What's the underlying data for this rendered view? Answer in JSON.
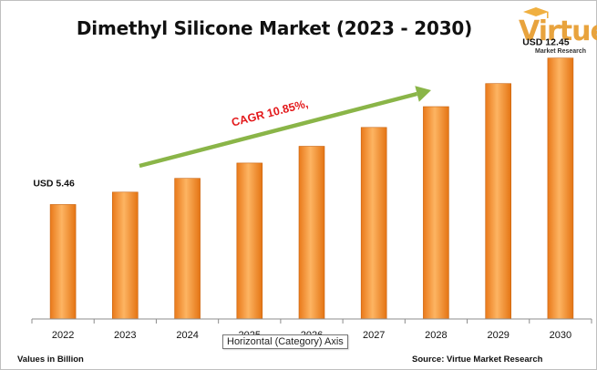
{
  "chart_data": {
    "type": "bar",
    "title": "Dimethyl Silicone Market (2023 - 2030)",
    "categories": [
      "2022",
      "2023",
      "2024",
      "2025",
      "2026",
      "2027",
      "2028",
      "2029",
      "2030"
    ],
    "values": [
      5.46,
      6.05,
      6.71,
      7.44,
      8.24,
      9.14,
      10.13,
      11.23,
      12.45
    ],
    "data_labels": {
      "first": "USD 5.46",
      "last": "USD 12.45"
    },
    "annotation": "CAGR 10.85%,",
    "ylim": [
      0,
      14
    ],
    "grid": false,
    "legend": "none"
  },
  "colors": {
    "bar": "#f79428",
    "bar_highlight": "#fdb462",
    "arrow": "#8ab548",
    "annotation": "#e31a1c",
    "logo": "#e8a33d"
  },
  "logo": {
    "brand": "Virtue",
    "sub": "Market Research",
    "icon": "hat-icon"
  },
  "footer": {
    "values_note": "Values in Billion",
    "source_note": "Source: Virtue Market Research"
  },
  "tooltip": {
    "text": "Horizontal (Category) Axis"
  }
}
